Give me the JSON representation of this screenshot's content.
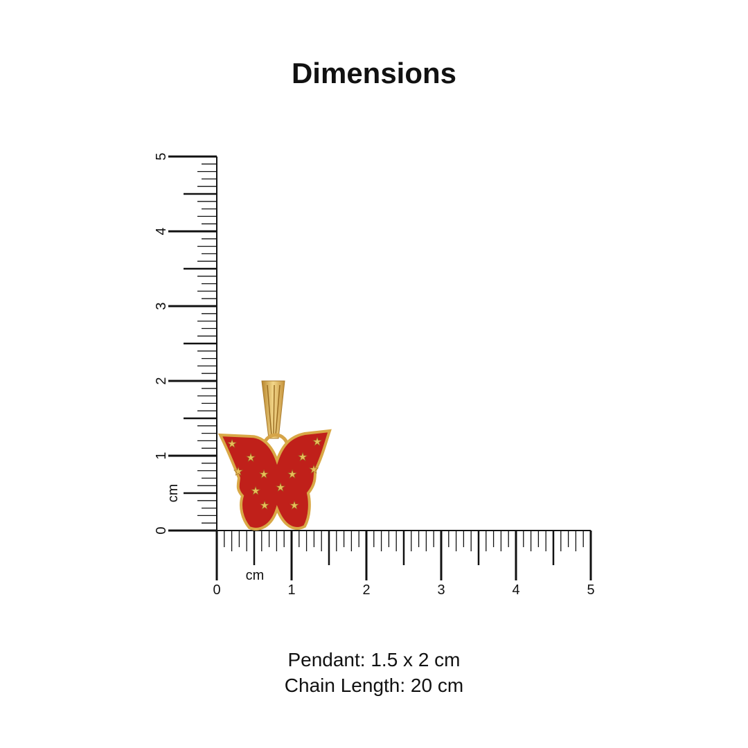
{
  "title": "Dimensions",
  "ruler": {
    "unit": "cm",
    "max": 5,
    "tick_labels": [
      "0",
      "1",
      "2",
      "3",
      "4",
      "5"
    ]
  },
  "product": {
    "type": "butterfly pendant",
    "colors": {
      "enamel": "#c0201a",
      "gold": "#d9a846"
    }
  },
  "caption": {
    "pendant": "Pendant: 1.5 x 2 cm",
    "chain": "Chain Length: 20 cm"
  }
}
